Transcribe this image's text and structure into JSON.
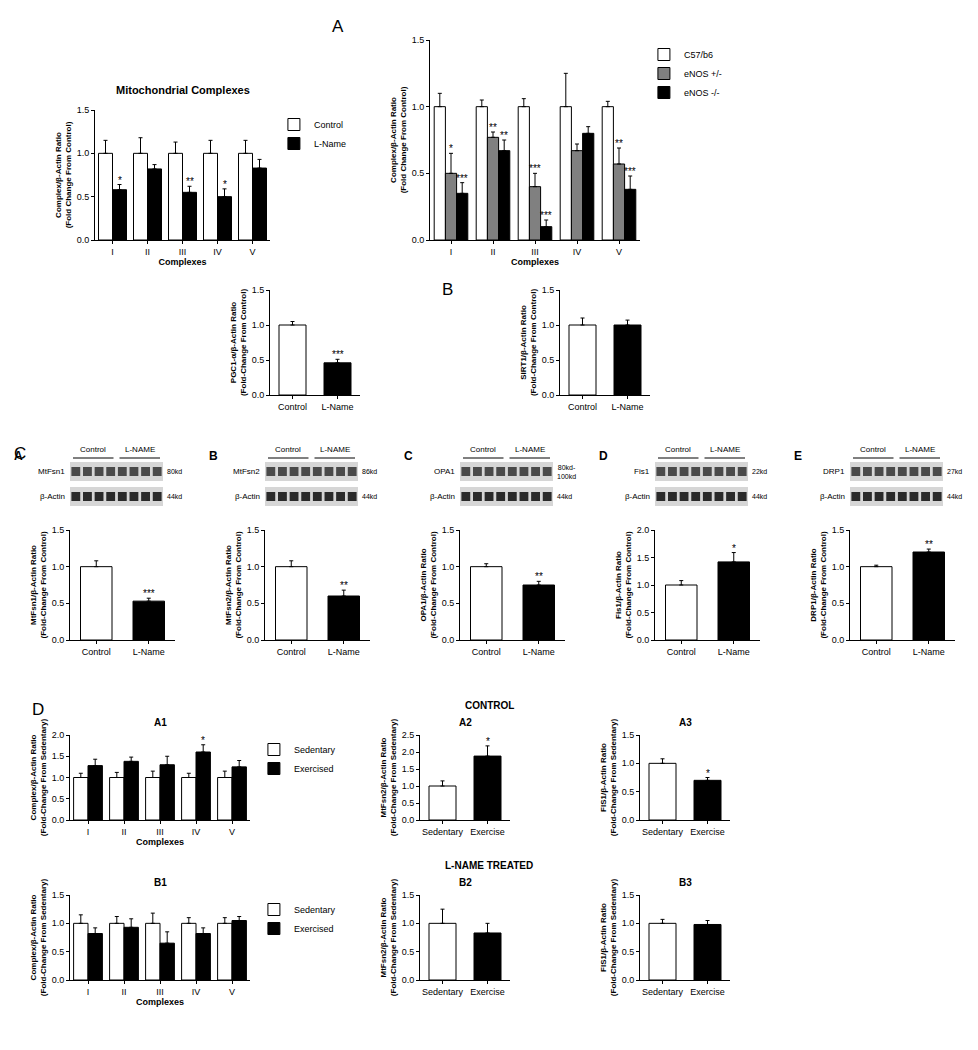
{
  "chart_data": [
    {
      "type": "bar",
      "panel": "A",
      "title": "Mitochondrial Complexes",
      "categories": [
        "I",
        "II",
        "III",
        "IV",
        "V"
      ],
      "x_label": "Complexes",
      "y_label": "Complex/β-Actin Ratio (Fold Change From Control)",
      "legend": "upper right",
      "ylim": [
        0,
        1.5
      ],
      "yticks": [
        {
          "value": 0,
          "label": "0.0"
        },
        {
          "value": 0.5,
          "label": "0.5"
        },
        {
          "value": 1,
          "label": "1.0"
        },
        {
          "value": 1.5,
          "label": "1.5"
        }
      ],
      "series": [
        {
          "name": "Control",
          "color": "#ffffff",
          "values": [
            1,
            1,
            1,
            1,
            1
          ],
          "errors": [
            0.15,
            0.18,
            0.13,
            0.15,
            0.15
          ],
          "significance": [
            null,
            null,
            null,
            null,
            null
          ]
        },
        {
          "name": "L-Name",
          "color": "#000000",
          "values": [
            0.58,
            0.82,
            0.55,
            0.5,
            0.83
          ],
          "errors": [
            0.06,
            0.05,
            0.07,
            0.09,
            0.1
          ],
          "significance": [
            "*",
            null,
            "**",
            "*",
            null
          ]
        }
      ]
    },
    {
      "type": "bar",
      "categories": [
        "I",
        "II",
        "III",
        "IV",
        "V"
      ],
      "x_label": "Complexes",
      "y_label": "Complex/β-Actin Ratio (Fold Change From Control)",
      "legend": "upper right",
      "ylim": [
        0,
        1.5
      ],
      "yticks": [
        {
          "value": 0,
          "label": "0.0"
        },
        {
          "value": 0.5,
          "label": "0.5"
        },
        {
          "value": 1,
          "label": "1.0"
        },
        {
          "value": 1.5,
          "label": "1.5"
        }
      ],
      "series": [
        {
          "name": "C57/b6",
          "color": "#ffffff",
          "values": [
            1,
            1,
            1,
            1,
            1
          ],
          "errors": [
            0.1,
            0.05,
            0.06,
            0.25,
            0.04
          ],
          "significance": [
            null,
            null,
            null,
            null,
            null
          ]
        },
        {
          "name": "eNOS +/-",
          "color": "#808080",
          "values": [
            0.5,
            0.77,
            0.4,
            0.67,
            0.57
          ],
          "errors": [
            0.15,
            0.04,
            0.1,
            0.05,
            0.12
          ],
          "significance": [
            "*",
            "**",
            "***",
            null,
            "**"
          ]
        },
        {
          "name": "eNOS -/-",
          "color": "#000000",
          "values": [
            0.35,
            0.67,
            0.1,
            0.8,
            0.38
          ],
          "errors": [
            0.08,
            0.08,
            0.05,
            0.05,
            0.1
          ],
          "significance": [
            "***",
            "**",
            "***",
            null,
            "***"
          ]
        }
      ]
    },
    {
      "type": "bar",
      "panel": "B",
      "categories": [
        "Control",
        "L-Name"
      ],
      "y_label": "PGC1-α/β-Actin Ratio (Fold-Change From Control)",
      "ylim": [
        0,
        1.5
      ],
      "yticks": [
        {
          "value": 0,
          "label": "0.0"
        },
        {
          "value": 0.5,
          "label": "0.5"
        },
        {
          "value": 1,
          "label": "1.0"
        },
        {
          "value": 1.5,
          "label": "1.5"
        }
      ],
      "series": [
        {
          "colors": [
            "#ffffff",
            "#000000"
          ],
          "values": [
            1,
            0.46
          ],
          "errors": [
            0.05,
            0.05
          ],
          "significance": [
            null,
            "***"
          ]
        }
      ]
    },
    {
      "type": "bar",
      "categories": [
        "Control",
        "L-Name"
      ],
      "y_label": "SIRT1/β-Actin Ratio (Fold-Change From Control)",
      "ylim": [
        0,
        1.5
      ],
      "yticks": [
        {
          "value": 0,
          "label": "0.0"
        },
        {
          "value": 0.5,
          "label": "0.5"
        },
        {
          "value": 1,
          "label": "1.0"
        },
        {
          "value": 1.5,
          "label": "1.5"
        }
      ],
      "series": [
        {
          "colors": [
            "#ffffff",
            "#000000"
          ],
          "values": [
            1,
            1
          ],
          "errors": [
            0.1,
            0.07
          ],
          "significance": [
            null,
            null
          ]
        }
      ]
    },
    {
      "type": "bar",
      "panel": "C",
      "subpanel": "A",
      "blot": {
        "protein": "MtFsn1",
        "protein_size": "80kd",
        "loading": "β-Actin",
        "loading_size": "44kd",
        "groups": [
          "Control",
          "L-NAME"
        ]
      },
      "categories": [
        "Control",
        "L-Name"
      ],
      "y_label": "MtFsn1/β-Actin Ratio (Fold-Change From Control)",
      "ylim": [
        0,
        1.5
      ],
      "yticks": [
        {
          "value": 0,
          "label": "0.0"
        },
        {
          "value": 0.5,
          "label": "0.5"
        },
        {
          "value": 1,
          "label": "1.0"
        },
        {
          "value": 1.5,
          "label": "1.5"
        }
      ],
      "series": [
        {
          "colors": [
            "#ffffff",
            "#000000"
          ],
          "values": [
            1,
            0.53
          ],
          "errors": [
            0.08,
            0.04
          ],
          "significance": [
            null,
            "***"
          ]
        }
      ]
    },
    {
      "type": "bar",
      "subpanel": "B",
      "blot": {
        "protein": "MtFsn2",
        "protein_size": "86kd",
        "loading": "β-Actin",
        "loading_size": "44kd",
        "groups": [
          "Control",
          "L-NAME"
        ]
      },
      "categories": [
        "Control",
        "L-Name"
      ],
      "y_label": "MtFsn2/β-Actin Ratio (Fold-Change From Control)",
      "ylim": [
        0,
        1.5
      ],
      "yticks": [
        {
          "value": 0,
          "label": "0.0"
        },
        {
          "value": 0.5,
          "label": "0.5"
        },
        {
          "value": 1,
          "label": "1.0"
        },
        {
          "value": 1.5,
          "label": "1.5"
        }
      ],
      "series": [
        {
          "colors": [
            "#ffffff",
            "#000000"
          ],
          "values": [
            1,
            0.6
          ],
          "errors": [
            0.08,
            0.08
          ],
          "significance": [
            null,
            "**"
          ]
        }
      ]
    },
    {
      "type": "bar",
      "subpanel": "C",
      "blot": {
        "protein": "OPA1",
        "protein_size": "80kd-100kd",
        "loading": "β-Actin",
        "loading_size": "44kd",
        "groups": [
          "Control",
          "L-NAME"
        ]
      },
      "categories": [
        "Control",
        "L-Name"
      ],
      "y_label": "OPA1/β-Actin Ratio (Fold-Change From Control)",
      "ylim": [
        0,
        1.5
      ],
      "yticks": [
        {
          "value": 0,
          "label": "0.0"
        },
        {
          "value": 0.5,
          "label": "0.5"
        },
        {
          "value": 1,
          "label": "1.0"
        },
        {
          "value": 1.5,
          "label": "1.5"
        }
      ],
      "series": [
        {
          "colors": [
            "#ffffff",
            "#000000"
          ],
          "values": [
            1,
            0.75
          ],
          "errors": [
            0.04,
            0.05
          ],
          "significance": [
            null,
            "**"
          ]
        }
      ]
    },
    {
      "type": "bar",
      "subpanel": "D",
      "blot": {
        "protein": "Fis1",
        "protein_size": "22kd",
        "loading": "β-Actin",
        "loading_size": "44kd",
        "groups": [
          "Control",
          "L-NAME"
        ]
      },
      "categories": [
        "Control",
        "L-Name"
      ],
      "y_label": "Fis1/β-Actin Ratio (Fold-Change From Control)",
      "ylim": [
        0,
        2
      ],
      "yticks": [
        {
          "value": 0,
          "label": "0.0"
        },
        {
          "value": 0.5,
          "label": "0.5"
        },
        {
          "value": 1,
          "label": "1.0"
        },
        {
          "value": 1.5,
          "label": "1.5"
        },
        {
          "value": 2,
          "label": "2.0"
        }
      ],
      "series": [
        {
          "colors": [
            "#ffffff",
            "#000000"
          ],
          "values": [
            1,
            1.42
          ],
          "errors": [
            0.08,
            0.17
          ],
          "significance": [
            null,
            "*"
          ]
        }
      ]
    },
    {
      "type": "bar",
      "subpanel": "E",
      "blot": {
        "protein": "DRP1",
        "protein_size": "27kd",
        "loading": "β-Actin",
        "loading_size": "44kd",
        "groups": [
          "Control",
          "L-NAME"
        ]
      },
      "categories": [
        "Control",
        "L-Name"
      ],
      "y_label": "DRP1/β-Actin Ratio (Fold-Change From Control)",
      "ylim": [
        0,
        1.5
      ],
      "yticks": [
        {
          "value": 0,
          "label": "0.0"
        },
        {
          "value": 0.5,
          "label": "0.5"
        },
        {
          "value": 1,
          "label": "1.0"
        },
        {
          "value": 1.5,
          "label": "1.5"
        }
      ],
      "series": [
        {
          "colors": [
            "#ffffff",
            "#000000"
          ],
          "values": [
            1,
            1.2
          ],
          "errors": [
            0.02,
            0.04
          ],
          "significance": [
            null,
            "**"
          ]
        }
      ]
    },
    {
      "type": "bar",
      "panel": "D",
      "section": "CONTROL",
      "subpanel": "A1",
      "categories": [
        "I",
        "II",
        "III",
        "IV",
        "V"
      ],
      "x_label": "Complexes",
      "y_label": "Complex/β-Actin Ratio (Fold-Change From Sedentary)",
      "legend": "upper right",
      "ylim": [
        0,
        2
      ],
      "yticks": [
        {
          "value": 0,
          "label": "0.0"
        },
        {
          "value": 0.5,
          "label": "0.5"
        },
        {
          "value": 1,
          "label": "1.0"
        },
        {
          "value": 1.5,
          "label": "1.5"
        },
        {
          "value": 2,
          "label": "2.0"
        }
      ],
      "series": [
        {
          "name": "Sedentary",
          "color": "#ffffff",
          "values": [
            1,
            1,
            1,
            1,
            1
          ],
          "errors": [
            0.1,
            0.12,
            0.15,
            0.1,
            0.15
          ],
          "significance": [
            null,
            null,
            null,
            null,
            null
          ]
        },
        {
          "name": "Exercised",
          "color": "#000000",
          "values": [
            1.28,
            1.38,
            1.3,
            1.6,
            1.25
          ],
          "errors": [
            0.15,
            0.1,
            0.2,
            0.17,
            0.15
          ],
          "significance": [
            null,
            null,
            null,
            "*",
            null
          ]
        }
      ]
    },
    {
      "type": "bar",
      "subpanel": "A2",
      "categories": [
        "Sedentary",
        "Exercise"
      ],
      "y_label": "MtFsn2/β-Actin Ratio (Fold-Change From Sedentary)",
      "ylim": [
        0,
        2.5
      ],
      "yticks": [
        {
          "value": 0,
          "label": "0.0"
        },
        {
          "value": 0.5,
          "label": "0.5"
        },
        {
          "value": 1,
          "label": "1.0"
        },
        {
          "value": 1.5,
          "label": "1.5"
        },
        {
          "value": 2,
          "label": "2.0"
        },
        {
          "value": 2.5,
          "label": "2.5"
        }
      ],
      "series": [
        {
          "colors": [
            "#ffffff",
            "#000000"
          ],
          "values": [
            1,
            1.88
          ],
          "errors": [
            0.15,
            0.3
          ],
          "significance": [
            null,
            "*"
          ]
        }
      ]
    },
    {
      "type": "bar",
      "subpanel": "A3",
      "categories": [
        "Sedentary",
        "Exercise"
      ],
      "y_label": "FIS1/β-Actin Ratio (Fold-Change From Sedentary)",
      "ylim": [
        0,
        1.5
      ],
      "yticks": [
        {
          "value": 0,
          "label": "0.0"
        },
        {
          "value": 0.5,
          "label": "0.5"
        },
        {
          "value": 1,
          "label": "1.0"
        },
        {
          "value": 1.5,
          "label": "1.5"
        }
      ],
      "series": [
        {
          "colors": [
            "#ffffff",
            "#000000"
          ],
          "values": [
            1,
            0.7
          ],
          "errors": [
            0.08,
            0.05
          ],
          "significance": [
            null,
            "*"
          ]
        }
      ]
    },
    {
      "type": "bar",
      "section": "L-NAME TREATED",
      "subpanel": "B1",
      "categories": [
        "I",
        "II",
        "III",
        "IV",
        "V"
      ],
      "x_label": "Complexes",
      "y_label": "Complex/β-Actin Ratio (Fold-Change From Sedentary)",
      "legend": "upper right",
      "ylim": [
        0,
        1.5
      ],
      "yticks": [
        {
          "value": 0,
          "label": "0.0"
        },
        {
          "value": 0.5,
          "label": "0.5"
        },
        {
          "value": 1,
          "label": "1.0"
        },
        {
          "value": 1.5,
          "label": "1.5"
        }
      ],
      "series": [
        {
          "name": "Sedentary",
          "color": "#ffffff",
          "values": [
            1,
            1,
            1,
            1,
            1
          ],
          "errors": [
            0.15,
            0.12,
            0.18,
            0.1,
            0.1
          ],
          "significance": [
            null,
            null,
            null,
            null,
            null
          ]
        },
        {
          "name": "Exercised",
          "color": "#000000",
          "values": [
            0.82,
            0.93,
            0.65,
            0.82,
            1.05
          ],
          "errors": [
            0.1,
            0.15,
            0.2,
            0.1,
            0.07
          ],
          "significance": [
            null,
            null,
            null,
            null,
            null
          ]
        }
      ]
    },
    {
      "type": "bar",
      "subpanel": "B2",
      "categories": [
        "Sedentary",
        "Exercise"
      ],
      "y_label": "MtFsn2/β-Actin Ratio (Fold-Change From Sedentary)",
      "ylim": [
        0,
        1.5
      ],
      "yticks": [
        {
          "value": 0,
          "label": "0.0"
        },
        {
          "value": 0.5,
          "label": "0.5"
        },
        {
          "value": 1,
          "label": "1.0"
        },
        {
          "value": 1.5,
          "label": "1.5"
        }
      ],
      "series": [
        {
          "colors": [
            "#ffffff",
            "#000000"
          ],
          "values": [
            1,
            0.83
          ],
          "errors": [
            0.25,
            0.17
          ],
          "significance": [
            null,
            null
          ]
        }
      ]
    },
    {
      "type": "bar",
      "subpanel": "B3",
      "categories": [
        "Sedentary",
        "Exercise"
      ],
      "y_label": "FIS1/β-Actin Ratio (Fold-Change From Sedentary)",
      "ylim": [
        0,
        1.5
      ],
      "yticks": [
        {
          "value": 0,
          "label": "0.0"
        },
        {
          "value": 0.5,
          "label": "0.5"
        },
        {
          "value": 1,
          "label": "1.0"
        },
        {
          "value": 1.5,
          "label": "1.5"
        }
      ],
      "series": [
        {
          "colors": [
            "#ffffff",
            "#000000"
          ],
          "values": [
            1,
            0.98
          ],
          "errors": [
            0.07,
            0.07
          ],
          "significance": [
            null,
            null
          ]
        }
      ]
    }
  ]
}
